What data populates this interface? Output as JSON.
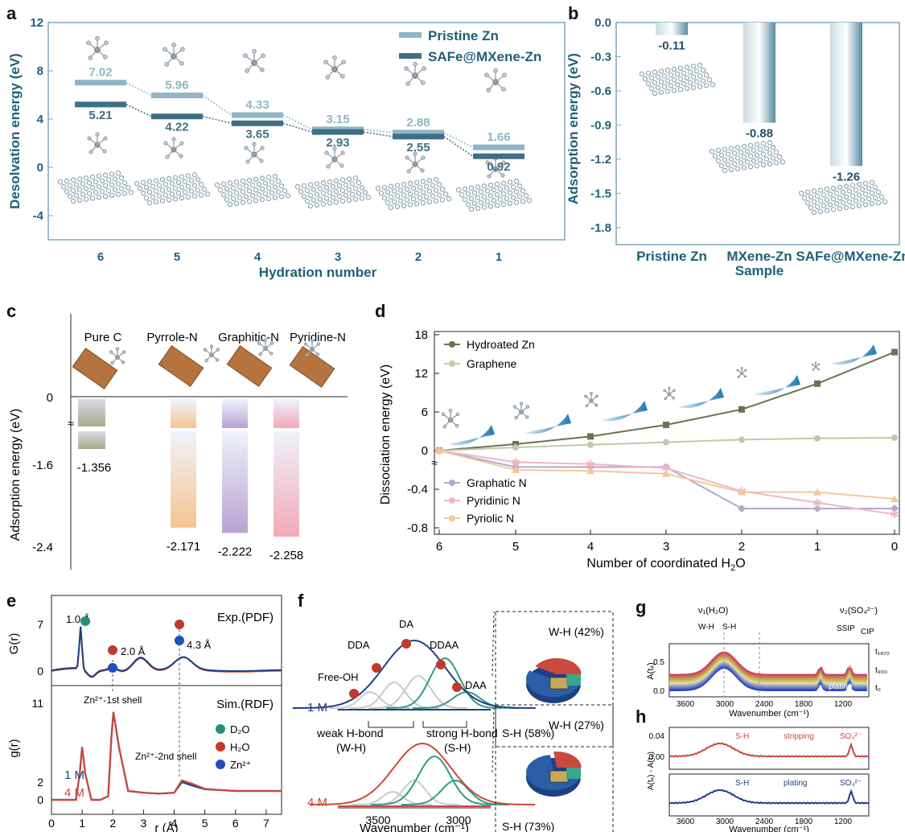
{
  "panel_labels": [
    "a",
    "b",
    "c",
    "d",
    "e",
    "f",
    "g",
    "h"
  ],
  "colors": {
    "pristine": "#8fb5c7",
    "safe": "#3f6f84",
    "axis_teal": "#1f5f7a",
    "graphitic": "#b8a6cf",
    "pyridinic": "#efb7c4",
    "pyrrolic": "#f3c89a",
    "hydro": "#6b7251",
    "graphene": "#c9c5a8",
    "red": "#c9493c",
    "blue": "#1f3f84"
  },
  "chart_data": [
    {
      "id": "a",
      "type": "line",
      "xlabel": "Hydration number",
      "ylabel": "Desolvation energy (eV)",
      "categories": [
        "6",
        "5",
        "4",
        "3",
        "2",
        "1"
      ],
      "ylim": [
        -6,
        12
      ],
      "yticks": [
        "12",
        "8",
        "4",
        "0",
        "-4"
      ],
      "series": [
        {
          "name": "Pristine Zn",
          "values": [
            7.02,
            5.96,
            4.33,
            3.15,
            2.88,
            1.66
          ],
          "labels": [
            "7.02",
            "5.96",
            "4.33",
            "3.15",
            "2.88",
            "1.66"
          ]
        },
        {
          "name": "SAFe@MXene-Zn",
          "values": [
            5.21,
            4.22,
            3.65,
            2.93,
            2.55,
            0.92
          ],
          "labels": [
            "5.21",
            "4.22",
            "3.65",
            "2.93",
            "2.55",
            "0.92"
          ]
        }
      ]
    },
    {
      "id": "b",
      "type": "bar",
      "xlabel": "Sample",
      "ylabel": "Adsorption energy (eV)",
      "categories": [
        "Pristine Zn",
        "MXene-Zn",
        "SAFe@MXene-Zn"
      ],
      "values": [
        -0.11,
        -0.88,
        -1.26
      ],
      "labels": [
        "-0.11",
        "-0.88",
        "-1.26"
      ],
      "ylim": [
        -1.95,
        0
      ],
      "yticks": [
        "0.0",
        "-0.3",
        "-0.6",
        "-0.9",
        "-1.2",
        "-1.5",
        "-1.8"
      ]
    },
    {
      "id": "c",
      "type": "bar",
      "ylabel": "Adsorption energy (eV)",
      "categories": [
        "Pure C",
        "Pyrrole-N",
        "Graphitic-N",
        "Pyridine-N"
      ],
      "values": [
        -1.356,
        -2.171,
        -2.222,
        -2.258
      ],
      "labels": [
        "-1.356",
        "-2.171",
        "-2.222",
        "-2.258"
      ],
      "yticks": [
        "0",
        "-1.6",
        "-2.4"
      ],
      "axis_break": true
    },
    {
      "id": "d",
      "type": "line",
      "xlabel": "Number of coordinated H",
      "xlabel_sub": "2",
      "xlabel_tail": "O",
      "ylabel": "Dissociation energy (eV)",
      "x": [
        6,
        5,
        4,
        3,
        2,
        1,
        0
      ],
      "xticks": [
        "6",
        "5",
        "4",
        "3",
        "2",
        "1",
        "0"
      ],
      "yticks": [
        "18",
        "12",
        "6",
        "0",
        "-0.4",
        "-0.8"
      ],
      "axis_break": true,
      "series": [
        {
          "name": "Hydroated Zn",
          "values": [
            0,
            1.0,
            2.2,
            4.0,
            6.4,
            10.4,
            15.3
          ]
        },
        {
          "name": "Graphene",
          "values": [
            0,
            0.5,
            0.9,
            1.3,
            1.7,
            1.9,
            2.0
          ]
        },
        {
          "name": "Graphatic N",
          "values": [
            0,
            -0.17,
            -0.17,
            -0.17,
            -0.6,
            -0.6,
            -0.6
          ]
        },
        {
          "name": "Pyridinic N",
          "values": [
            0,
            -0.12,
            -0.14,
            -0.18,
            -0.42,
            -0.54,
            -0.66
          ]
        },
        {
          "name": "Pyriolic N",
          "values": [
            0,
            -0.2,
            -0.21,
            -0.24,
            -0.43,
            -0.43,
            -0.5
          ]
        }
      ]
    },
    {
      "id": "e",
      "type": "line",
      "xlabel": "r (Å)",
      "top_ylabel": "G(r)",
      "bottom_ylabel": "g(r)",
      "xticks": [
        "0",
        "1",
        "2",
        "3",
        "4",
        "5",
        "6",
        "7"
      ],
      "top_yticks": [
        "7",
        "0"
      ],
      "bottom_yticks": [
        "11",
        "2",
        "0"
      ],
      "annotations": {
        "exp": "Exp.(PDF)",
        "sim": "Sim.(RDF)",
        "d1": "1.0 Å",
        "d2": "2.0 Å",
        "d3": "4.3 Å",
        "shell1": "Zn²⁺-1st shell",
        "shell2": "Zn²⁺-2nd shell"
      },
      "legend": [
        "D₂O",
        "H₂O",
        "Zn²⁺"
      ],
      "series": [
        {
          "name": "1 M",
          "x": [
            0,
            0.5,
            0.8,
            0.92,
            1.0,
            1.1,
            1.3,
            1.6,
            1.85,
            1.95,
            2.02,
            2.2,
            2.5,
            3,
            3.5,
            4,
            4.25,
            4.6,
            5,
            5.5,
            6,
            6.5,
            7,
            7.5
          ],
          "g": [
            0,
            0,
            0,
            3,
            6,
            3,
            0,
            0,
            0.4,
            7,
            10,
            6,
            1,
            0.8,
            0.7,
            0.8,
            2.0,
            1.6,
            1.2,
            1.1,
            1.0,
            1.0,
            1.0,
            1.0
          ]
        },
        {
          "name": "4 M",
          "x": [
            0,
            0.5,
            0.8,
            0.92,
            1.0,
            1.1,
            1.3,
            1.6,
            1.85,
            1.95,
            2.02,
            2.2,
            2.5,
            3,
            3.5,
            4,
            4.25,
            4.6,
            5,
            5.5,
            6,
            6.5,
            7,
            7.5
          ],
          "g": [
            0,
            0,
            0,
            3,
            6,
            3,
            0,
            0,
            0.4,
            7,
            10,
            6,
            1,
            0.8,
            0.7,
            0.8,
            2.2,
            1.8,
            1.25,
            1.1,
            1.0,
            1.0,
            1.0,
            1.0
          ]
        }
      ]
    },
    {
      "id": "f",
      "type": "line",
      "xlabel": "Wavenumber (cm⁻¹)",
      "xticks": [
        "3500",
        "3000"
      ],
      "species": [
        "Free-OH",
        "DDA",
        "DA",
        "DDAA",
        "DAA"
      ],
      "bonds": [
        "weak H-bond",
        "(W-H)",
        "strong H-bond",
        "(S-H)"
      ],
      "concentrations": [
        "1 M",
        "4 M"
      ],
      "pies": [
        {
          "wh": 42,
          "sh": 58,
          "wh_label": "W-H (42%)",
          "sh_label": "S-H (58%)"
        },
        {
          "wh": 27,
          "sh": 73,
          "wh_label": "W-H (27%)",
          "sh_label": "S-H (73%)"
        }
      ]
    },
    {
      "id": "g",
      "type": "area",
      "xlabel": "Wavenumber (cm⁻¹)",
      "ylabel": "A(tₓ)",
      "xticks": [
        "3600",
        "3000",
        "2400",
        "1800",
        "1200"
      ],
      "yticks": [
        "0.5",
        "0.0"
      ],
      "labels": [
        "ν₁(H₂O)",
        "W-H",
        "S-H",
        "ν₂(SO₄²⁻)",
        "SSIP",
        "CIP",
        "stripping",
        "plating",
        "t₁₈₇₀",
        "t₉₀₀",
        "t₀"
      ]
    },
    {
      "id": "h",
      "type": "area",
      "xlabel": "Wavenumber (cm⁻¹)",
      "ylabel": "A(tₓ) - A(t₀)",
      "xticks": [
        "3600",
        "3000",
        "2400",
        "1800",
        "1200"
      ],
      "yticks": [
        "0.04",
        "0.00"
      ],
      "labels": [
        "S-H",
        "stripping",
        "SO₄²⁻",
        "S-H",
        "plating",
        "SO₄²⁻"
      ]
    }
  ]
}
